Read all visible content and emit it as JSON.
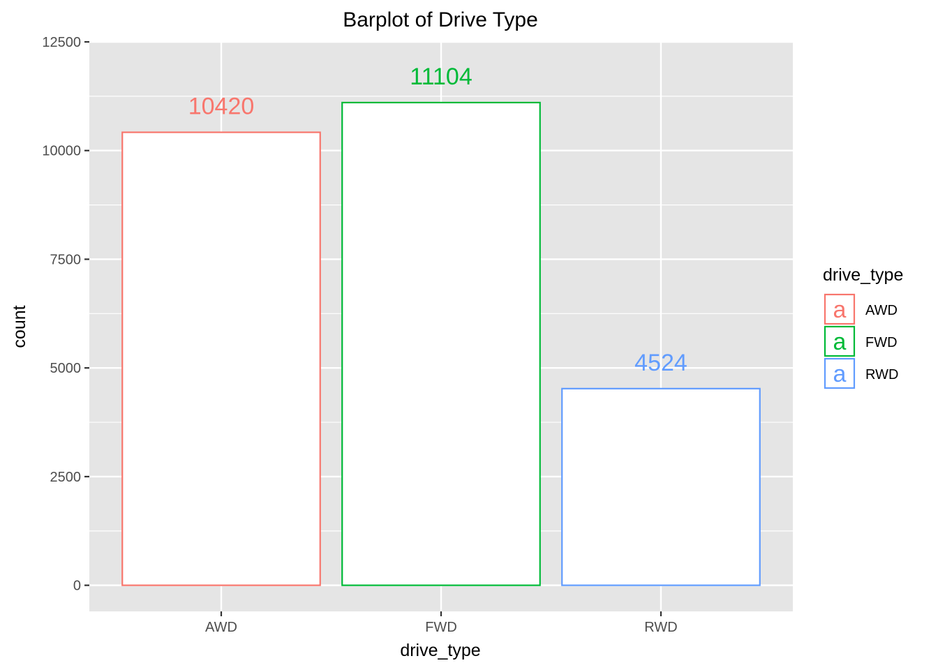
{
  "chart_data": {
    "type": "bar",
    "title": "Barplot of Drive Type",
    "xlabel": "drive_type",
    "ylabel": "count",
    "categories": [
      "AWD",
      "FWD",
      "RWD"
    ],
    "values": [
      10420,
      11104,
      4524
    ],
    "data_labels": [
      "10420",
      "11104",
      "4524"
    ],
    "colors": [
      "#F8766D",
      "#00BA38",
      "#619CFF"
    ],
    "ylim": [
      -600,
      12500
    ],
    "yticks": [
      0,
      2500,
      5000,
      7500,
      10000,
      12500
    ],
    "ytick_labels": [
      "0",
      "2500",
      "5000",
      "7500",
      "10000",
      "12500"
    ],
    "grid": true,
    "panel_background": "#E5E5E5",
    "legend": {
      "title": "drive_type",
      "placement": "right",
      "key_glyph": "a",
      "items": [
        "AWD",
        "FWD",
        "RWD"
      ]
    }
  }
}
